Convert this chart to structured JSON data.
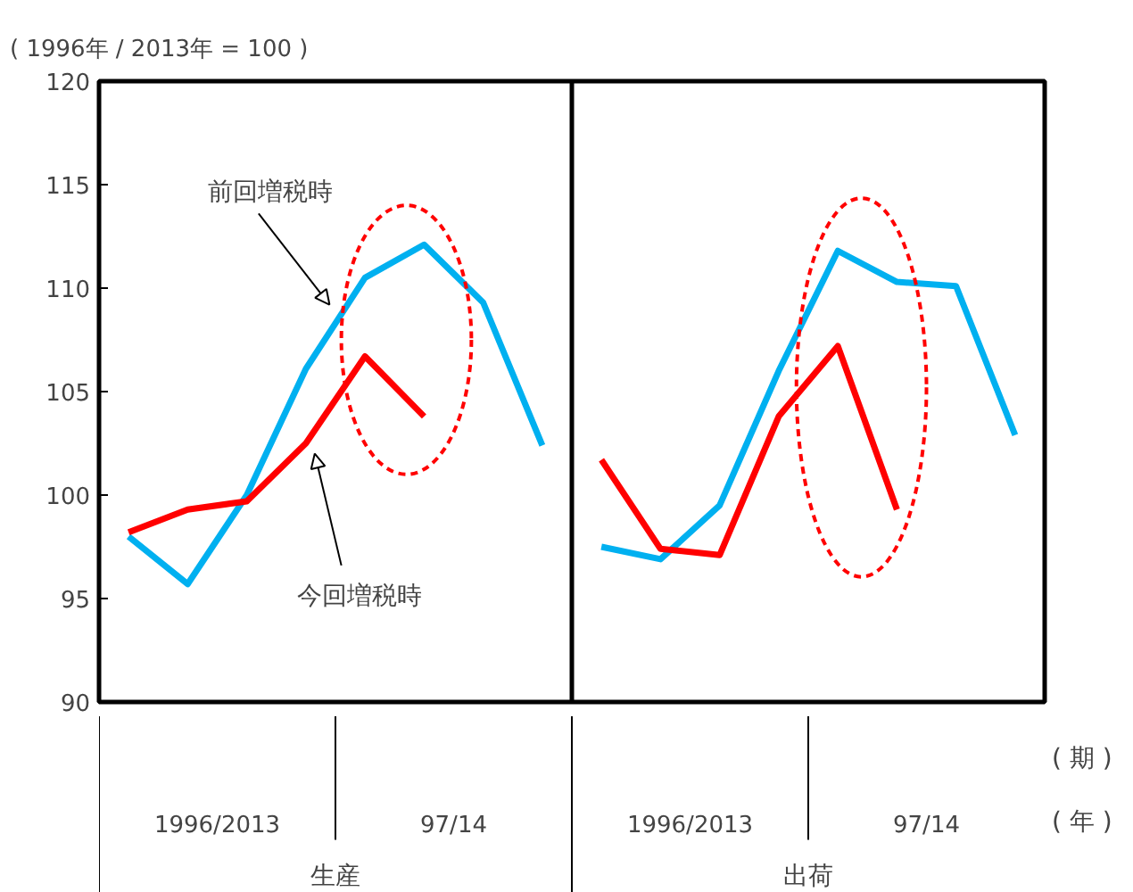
{
  "chart_data": {
    "type": "line",
    "ylabel": "( 1996年 / 2013年 = 100 )",
    "categories": [
      null,
      null,
      null,
      null,
      null,
      null,
      null,
      null,
      null,
      null,
      null,
      null,
      null,
      null,
      null,
      null
    ],
    "series": [
      {
        "name": "前回増税時",
        "color": "#00b0f0",
        "values": [
          98.0,
          95.7,
          100.0,
          106.1,
          110.5,
          112.1,
          109.3,
          102.4,
          null,
          null,
          null,
          null,
          null,
          null,
          null,
          null
        ]
      },
      {
        "name": "今回増税時",
        "color": "#ff0000",
        "values": [
          98.2,
          99.3,
          99.7,
          102.5,
          106.7,
          103.8,
          null,
          null,
          null,
          null,
          null,
          null,
          null,
          null,
          null,
          null
        ]
      },
      {
        "color": "#00b0f0",
        "values": [
          null,
          null,
          null,
          null,
          null,
          null,
          null,
          null,
          97.5,
          96.9,
          99.5,
          106.0,
          111.8,
          110.3,
          110.1,
          102.9
        ]
      },
      {
        "color": "#ff0000",
        "values": [
          null,
          null,
          null,
          null,
          null,
          null,
          null,
          null,
          101.7,
          97.4,
          97.1,
          103.8,
          107.2,
          99.3,
          null,
          null
        ]
      }
    ],
    "ylim": [
      90,
      120
    ],
    "yticks": [
      90,
      95,
      100,
      105,
      110,
      115,
      120
    ],
    "tick_labels": "y",
    "grid": false,
    "annotations": [
      "1996/2013",
      "97/14",
      "1996/2013",
      "97/14",
      "生産",
      "出荷",
      "( 期 )",
      "( 年 )"
    ]
  }
}
